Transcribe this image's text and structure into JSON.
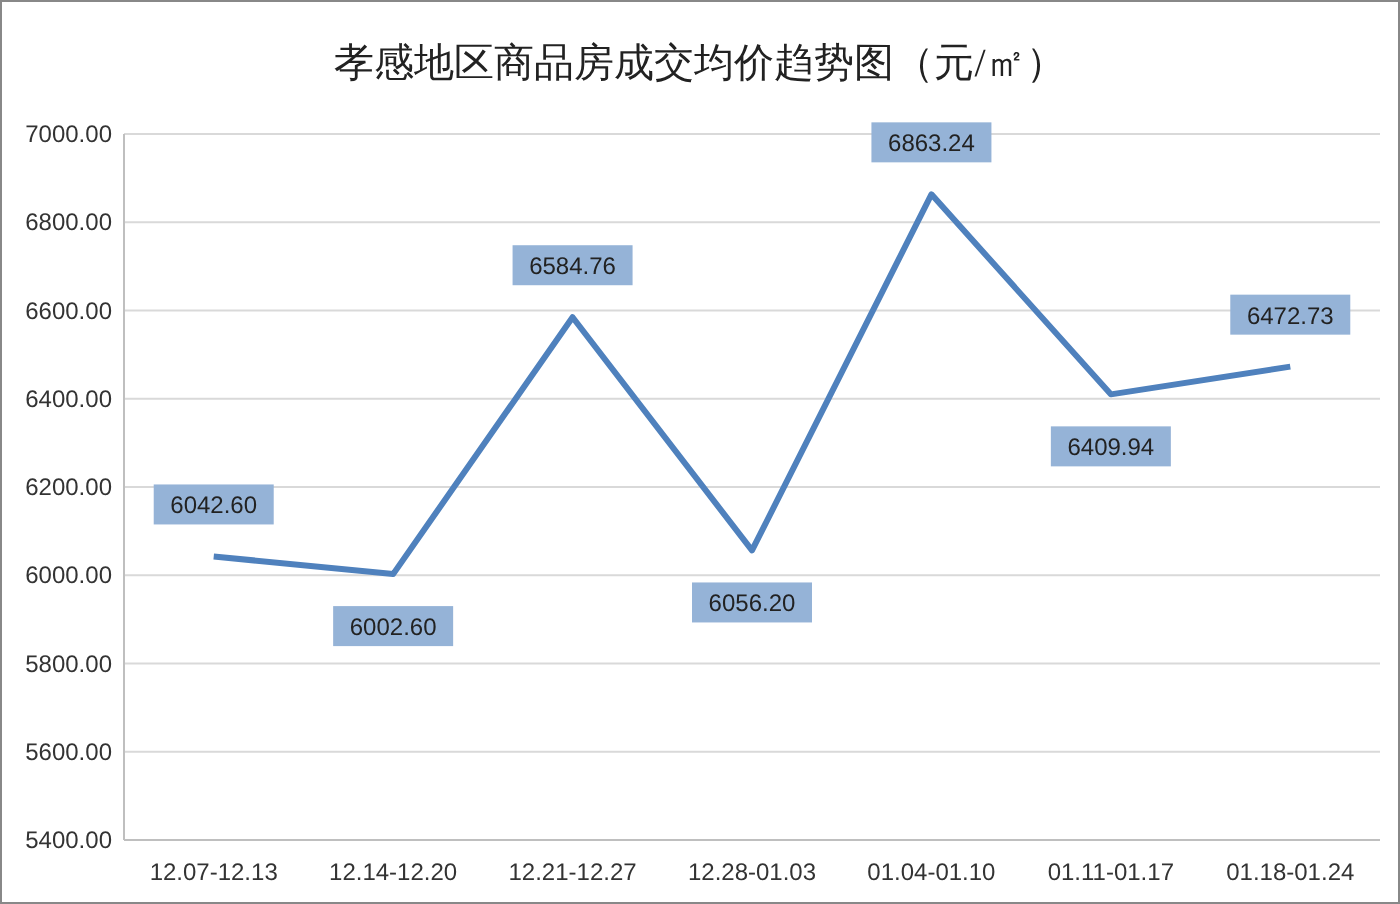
{
  "chart_data": {
    "type": "line",
    "title": "孝感地区商品房成交均价趋势图（元/㎡）",
    "categories": [
      "12.07-12.13",
      "12.14-12.20",
      "12.21-12.27",
      "12.28-01.03",
      "01.04-01.10",
      "01.11-01.17",
      "01.18-01.24"
    ],
    "series": [
      {
        "color": "#4f81bd",
        "values": [
          6042.6,
          6002.6,
          6584.76,
          6056.2,
          6863.24,
          6409.94,
          6472.73
        ],
        "value_labels": [
          "6042.60",
          "6002.60",
          "6584.76",
          "6056.20",
          "6863.24",
          "6409.94",
          "6472.73"
        ]
      }
    ],
    "ylim": [
      5400,
      7000
    ],
    "yticks": [
      {
        "value": 5400,
        "label": "5400.00"
      },
      {
        "value": 5600,
        "label": "5600.00"
      },
      {
        "value": 5800,
        "label": "5800.00"
      },
      {
        "value": 6000,
        "label": "6000.00"
      },
      {
        "value": 6200,
        "label": "6200.00"
      },
      {
        "value": 6400,
        "label": "6400.00"
      },
      {
        "value": 6600,
        "label": "6600.00"
      },
      {
        "value": 6800,
        "label": "6800.00"
      },
      {
        "value": 7000,
        "label": "7000.00"
      }
    ],
    "grid": "y",
    "marker": "none",
    "line_style": "solid"
  }
}
